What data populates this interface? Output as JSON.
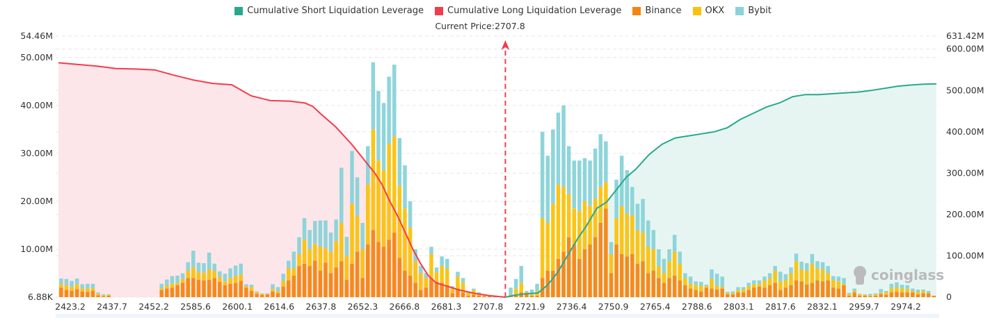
{
  "chart_data": {
    "type": "bar",
    "title": "",
    "legend": [
      {
        "name": "Cumulative Short Liquidation Leverage",
        "color": "#26a98b"
      },
      {
        "name": "Cumulative Long Liquidation Leverage",
        "color": "#f23c4c"
      },
      {
        "name": "Binance",
        "color": "#f7840f"
      },
      {
        "name": "OKX",
        "color": "#fcc10a"
      },
      {
        "name": "Bybit",
        "color": "#88d3d8"
      }
    ],
    "legend_position": "top-center",
    "annotation": "Current Price:2707.8",
    "current_price_index": 84,
    "x_tick_labels": [
      "2423.2",
      "2437.7",
      "2452.2",
      "2585.6",
      "2600.1",
      "2614.6",
      "2637.8",
      "2652.3",
      "2666.8",
      "2681.3",
      "2707.8",
      "2721.9",
      "2736.4",
      "2750.9",
      "2765.4",
      "2788.6",
      "2803.1",
      "2817.6",
      "2832.1",
      "2959.7",
      "2974.2"
    ],
    "y_left": {
      "ticks": [
        "6.88K",
        "10.00M",
        "20.00M",
        "30.00M",
        "40.00M",
        "50.00M",
        "54.46M"
      ],
      "tick_values": [
        0,
        10,
        20,
        30,
        40,
        50,
        54.46
      ],
      "range": [
        0,
        54.46
      ],
      "unit": "M"
    },
    "y_right": {
      "ticks": [
        "0",
        "100.00M",
        "200.00M",
        "300.00M",
        "400.00M",
        "500.00M",
        "600.00M",
        "631.42M"
      ],
      "tick_values": [
        0,
        100,
        200,
        300,
        400,
        500,
        600,
        631.42
      ],
      "range": [
        0,
        631.42
      ],
      "unit": "M"
    },
    "grid": true,
    "bars_binance": [
      2,
      1.5,
      1.3,
      1.7,
      1.2,
      1.1,
      1.3,
      0.4,
      0.2,
      0.3,
      0,
      0,
      0,
      0,
      0,
      0,
      0,
      0,
      0,
      1.5,
      1.8,
      2.0,
      2.5,
      3.0,
      4.0,
      4.0,
      3.6,
      3.5,
      3.6,
      4.0,
      3.2,
      2.5,
      2.8,
      3.0,
      3.4,
      2.0,
      1.3,
      0.7,
      0.5,
      0.6,
      1.2,
      0.8,
      2.2,
      3.5,
      4.5,
      6.5,
      7.0,
      6.5,
      7.6,
      5.5,
      7.2,
      5.0,
      6.2,
      7.5,
      3.6,
      7.0,
      9.5,
      4.0,
      11.0,
      14.0,
      11.5,
      10.5,
      12.0,
      13.5,
      8.2,
      5.5,
      4.5,
      3.0,
      1.5,
      2.0,
      4.0,
      3.2,
      3.0,
      2.5,
      0.8,
      1.8,
      1.0,
      0.3,
      0.5,
      0.3,
      0.2,
      0.2,
      0.1,
      0,
      0,
      0.2,
      0.3,
      1.0,
      0.8,
      0.3,
      0.3,
      4.0,
      5.5,
      5.5,
      8.0,
      9.5,
      12.5,
      11.0,
      8.0,
      10.0,
      11.0,
      12.5,
      15.5,
      18.5,
      5.0,
      11.0,
      9.0,
      8.5,
      9.0,
      7.0,
      7.5,
      5.0,
      5.5,
      4.0,
      3.0,
      4.0,
      4.5,
      3.5,
      2.5,
      1.8,
      1.5,
      1.2,
      2.0,
      1.8,
      1.6,
      1.8,
      0.6,
      0.6,
      1.0,
      1.0,
      1.5,
      2.0,
      2.2,
      2.0,
      2.5,
      3.0,
      1.5,
      2.0,
      2.5,
      3.5,
      3.3,
      2.6,
      3.0,
      3.5,
      3.3,
      3.5,
      2.0,
      1.8,
      2.5,
      0.3,
      1.0,
      0.3,
      0.3,
      0.2,
      0.3,
      0.7,
      0.5,
      1.0,
      1.1,
      1.0,
      1.0,
      1.0,
      0.6,
      0.8,
      0.8,
      0.3
    ],
    "bars_okx": [
      0.7,
      1.0,
      0.8,
      1.0,
      0.6,
      0.7,
      0.6,
      0.3,
      0.2,
      0.2,
      0,
      0,
      0,
      0,
      0,
      0,
      0,
      0,
      0,
      0.3,
      0.6,
      0.8,
      0.5,
      0.8,
      1.5,
      2.2,
      1.6,
      1.6,
      2.2,
      1.5,
      1.0,
      0.8,
      1.2,
      1.4,
      1.3,
      0.3,
      0.8,
      0.3,
      0.2,
      0.1,
      0.5,
      0.4,
      1.2,
      2.5,
      1.5,
      2.5,
      5.0,
      3.5,
      3.5,
      5.0,
      3.0,
      4.5,
      5.5,
      8.0,
      5.0,
      12.5,
      7.5,
      6.0,
      12.5,
      21,
      17,
      16,
      20,
      20,
      15,
      13,
      10,
      4.5,
      3.5,
      2.0,
      5.0,
      2.0,
      3.5,
      3.5,
      1.0,
      2.5,
      2.0,
      0.6,
      1.0,
      0.5,
      0.3,
      0.2,
      0.1,
      0,
      0,
      0.3,
      1.5,
      2.0,
      0.3,
      0.3,
      1.0,
      12.5,
      10.0,
      14.0,
      15.5,
      13.5,
      9.0,
      7.5,
      10.0,
      10.0,
      8.0,
      8.0,
      7.5,
      5.5,
      4.0,
      5.5,
      10.0,
      9.0,
      8.0,
      7.0,
      6.0,
      5.5,
      4.5,
      2.5,
      2.0,
      3.5,
      5.0,
      3.5,
      1.5,
      1.0,
      1.0,
      1.2,
      0.3,
      2.0,
      0.8,
      0.3,
      0.2,
      0.3,
      0.5,
      0.6,
      0.8,
      0.7,
      0.6,
      1.5,
      1.5,
      2.5,
      1.8,
      1.6,
      2.5,
      4.0,
      2.5,
      3.0,
      4.0,
      2.5,
      2.5,
      1.5,
      1.6,
      1.5,
      0.2,
      0.3,
      0.3,
      0.3,
      0.2,
      0.2,
      0.3,
      0.2,
      0.5,
      0.8,
      1.0,
      0.8,
      0.7,
      0.3,
      0.5,
      0.5,
      0.1
    ],
    "bars_bybit": [
      1.2,
      1.3,
      1.3,
      1.2,
      0.9,
      1.0,
      0.9,
      0.3,
      0.2,
      0.1,
      0,
      0,
      0,
      0,
      0,
      0,
      0,
      0,
      0,
      1.0,
      1.3,
      1.6,
      1.5,
      1.2,
      1.8,
      3.5,
      2.0,
      2.0,
      3.5,
      1.5,
      1.2,
      1.6,
      2.0,
      2.2,
      2.3,
      0.4,
      0.5,
      0.2,
      0.1,
      0.1,
      1.0,
      0.9,
      1.5,
      1.6,
      3.5,
      3.5,
      4.5,
      4.0,
      4.8,
      5.5,
      5.8,
      4.0,
      4.5,
      11.5,
      4.0,
      11.0,
      8.0,
      5.5,
      8.0,
      14,
      14.5,
      14,
      14,
      15,
      10,
      9,
      5.5,
      2.5,
      1.5,
      1.0,
      1.5,
      1.0,
      2.0,
      2.0,
      0.5,
      1.0,
      1.0,
      0.3,
      0.3,
      0.2,
      0,
      0,
      0,
      0,
      0,
      1.5,
      2.0,
      3.5,
      0.2,
      1.0,
      1.5,
      18.0,
      14.0,
      15.5,
      15.0,
      17.0,
      10.0,
      10.0,
      10.5,
      9.0,
      9.5,
      10.5,
      11.0,
      8.5,
      2.5,
      8.0,
      10.5,
      9.0,
      6.0,
      5.5,
      7.0,
      5.5,
      4.0,
      3.5,
      3.0,
      2.5,
      3.5,
      2.5,
      1.0,
      1.5,
      0.8,
      0.8,
      0.3,
      2.0,
      2.5,
      2.2,
      0.3,
      0.3,
      0.6,
      0.5,
      0.7,
      0.8,
      0.7,
      0.8,
      1.0,
      1.0,
      2.0,
      1.2,
      1.2,
      1.6,
      1.6,
      1.5,
      2.0,
      1.5,
      1.5,
      1.5,
      0.8,
      1.0,
      1.3,
      0.3,
      0.5,
      0.1,
      0.1,
      0.3,
      0.2,
      0.8,
      0.3,
      1.0,
      1.0,
      0.8,
      0.8,
      0.5,
      0.5,
      0.3,
      0.4,
      0
    ],
    "long_cumulative_points": [
      [
        0,
        48.9
      ],
      [
        10,
        48.2
      ],
      [
        15,
        47.7
      ],
      [
        20,
        47.6
      ],
      [
        25,
        47.4
      ],
      [
        30,
        46.3
      ],
      [
        35,
        45.3
      ],
      [
        40,
        44.6
      ],
      [
        45,
        44.3
      ],
      [
        50,
        42.0
      ],
      [
        55,
        41.0
      ],
      [
        60,
        40.9
      ],
      [
        64,
        40.5
      ],
      [
        66,
        39.8
      ],
      [
        68,
        38.3
      ],
      [
        72,
        35.5
      ],
      [
        76,
        32.0
      ],
      [
        78,
        30.0
      ],
      [
        80,
        28.0
      ],
      [
        82,
        26.0
      ],
      [
        84,
        23.5
      ],
      [
        86,
        20.0
      ],
      [
        88,
        17.0
      ],
      [
        90,
        13.5
      ],
      [
        92,
        10.0
      ],
      [
        94,
        7.0
      ],
      [
        96,
        4.5
      ],
      [
        98,
        3.0
      ],
      [
        100,
        2.5
      ],
      [
        104,
        1.5
      ],
      [
        108,
        0.8
      ],
      [
        112,
        0.3
      ],
      [
        116,
        0
      ]
    ],
    "short_cumulative_points": [
      [
        0,
        0
      ],
      [
        3,
        5
      ],
      [
        6,
        8
      ],
      [
        10,
        10
      ],
      [
        13,
        30
      ],
      [
        16,
        60
      ],
      [
        19,
        100
      ],
      [
        22,
        140
      ],
      [
        25,
        175
      ],
      [
        28,
        215
      ],
      [
        31,
        230
      ],
      [
        34,
        260
      ],
      [
        37,
        290
      ],
      [
        40,
        310
      ],
      [
        44,
        345
      ],
      [
        48,
        370
      ],
      [
        52,
        385
      ],
      [
        56,
        390
      ],
      [
        60,
        395
      ],
      [
        64,
        400
      ],
      [
        68,
        410
      ],
      [
        72,
        430
      ],
      [
        76,
        445
      ],
      [
        80,
        460
      ],
      [
        84,
        470
      ],
      [
        88,
        485
      ],
      [
        92,
        490
      ],
      [
        96,
        490
      ],
      [
        100,
        492
      ],
      [
        104,
        494
      ],
      [
        108,
        496
      ],
      [
        112,
        500
      ],
      [
        116,
        505
      ],
      [
        120,
        510
      ],
      [
        124,
        513
      ],
      [
        128,
        515
      ],
      [
        132,
        516
      ]
    ],
    "watermark": "coinglass"
  }
}
